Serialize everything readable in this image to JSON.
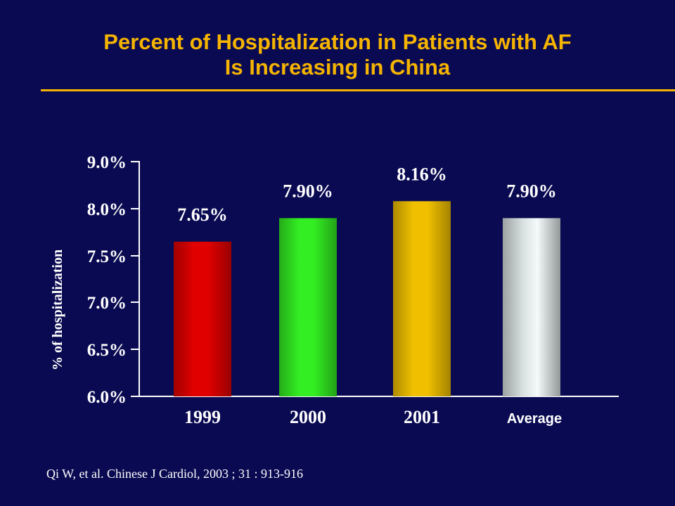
{
  "title": {
    "line1": "Percent of Hospitalization in Patients with AF",
    "line2": "Is Increasing in China"
  },
  "colors": {
    "background": "#0a0a52",
    "title": "#f5b400",
    "text": "#ffffff"
  },
  "chart_data": {
    "type": "bar",
    "categories": [
      "1999",
      "2000",
      "2001",
      "Average"
    ],
    "values": [
      7.65,
      7.9,
      8.16,
      7.9
    ],
    "data_labels": [
      "7.65%",
      "7.90%",
      "8.16%",
      "7.90%"
    ],
    "bar_colors": [
      "#e00000",
      "#33ee22",
      "#f0c000",
      "#d8e0e0"
    ],
    "ylabel": "% of hospitalization",
    "yticks": [
      "6.0%",
      "6.5%",
      "7.0%",
      "7.5%",
      "8.0%",
      "9.0%"
    ],
    "ylim": [
      6.0,
      9.0
    ],
    "axis_break": true,
    "grid": false
  },
  "citation": "Qi W, et al. Chinese J Cardiol, 2003 ; 31 : 913-916"
}
